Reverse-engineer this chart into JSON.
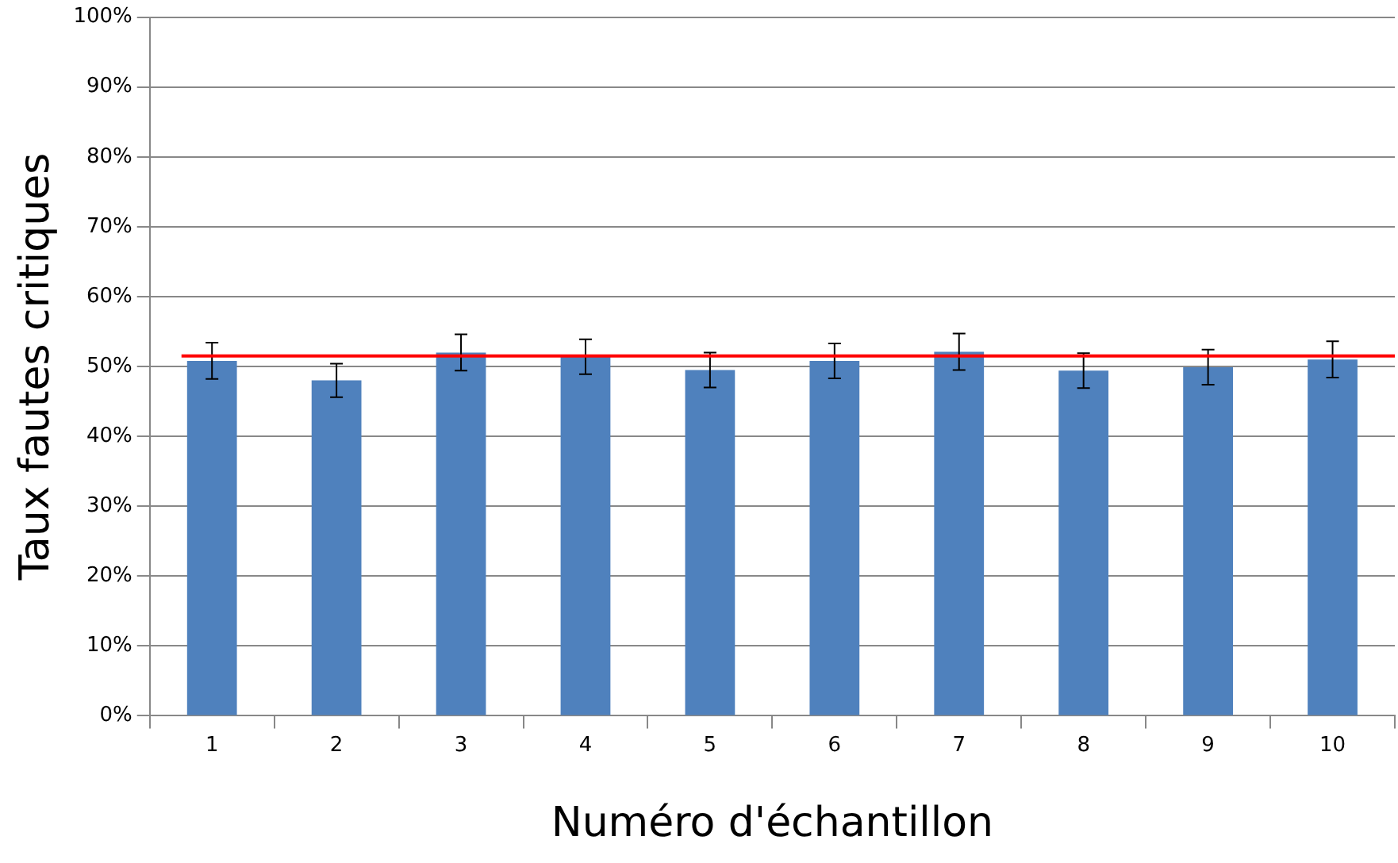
{
  "chart_data": {
    "type": "bar",
    "xlabel": "Numéro d'échantillon",
    "ylabel": "Taux fautes critiques",
    "categories": [
      "1",
      "2",
      "3",
      "4",
      "5",
      "6",
      "7",
      "8",
      "9",
      "10"
    ],
    "values": [
      50.8,
      48.0,
      52.0,
      51.4,
      49.5,
      50.8,
      52.1,
      49.4,
      49.9,
      51.0
    ],
    "errors": [
      2.6,
      2.4,
      2.6,
      2.5,
      2.5,
      2.5,
      2.6,
      2.5,
      2.5,
      2.6
    ],
    "color": "#4f81bd",
    "ylim": [
      0,
      100
    ],
    "yticks": [
      {
        "value": 0,
        "label": "0%"
      },
      {
        "value": 10,
        "label": "10%"
      },
      {
        "value": 20,
        "label": "20%"
      },
      {
        "value": 30,
        "label": "30%"
      },
      {
        "value": 40,
        "label": "40%"
      },
      {
        "value": 50,
        "label": "50%"
      },
      {
        "value": 60,
        "label": "60%"
      },
      {
        "value": 70,
        "label": "70%"
      },
      {
        "value": 80,
        "label": "80%"
      },
      {
        "value": 90,
        "label": "90%"
      },
      {
        "value": 100,
        "label": "100%"
      }
    ],
    "ref_lines": [
      {
        "axis": "y",
        "value": 51.5,
        "color": "#ff0000"
      }
    ],
    "grid": "y",
    "legend": false
  }
}
